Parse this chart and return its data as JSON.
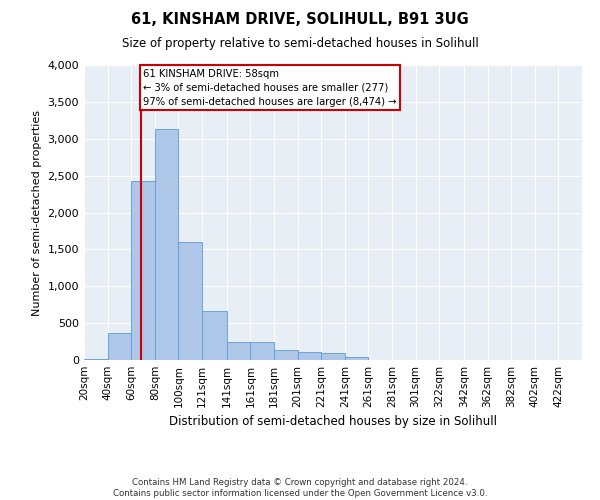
{
  "title": "61, KINSHAM DRIVE, SOLIHULL, B91 3UG",
  "subtitle": "Size of property relative to semi-detached houses in Solihull",
  "xlabel": "Distribution of semi-detached houses by size in Solihull",
  "ylabel": "Number of semi-detached properties",
  "footnote": "Contains HM Land Registry data © Crown copyright and database right 2024.\nContains public sector information licensed under the Open Government Licence v3.0.",
  "annotation_line1": "61 KINSHAM DRIVE: 58sqm",
  "annotation_line2": "← 3% of semi-detached houses are smaller (277)",
  "annotation_line3": "97% of semi-detached houses are larger (8,474) →",
  "property_size": 58,
  "bar_color": "#aec6e8",
  "bar_edge_color": "#5b9bd5",
  "marker_color": "#cc0000",
  "annotation_box_color": "#cc0000",
  "background_color": "#e8eef5",
  "categories": [
    "20sqm",
    "40sqm",
    "60sqm",
    "80sqm",
    "100sqm",
    "121sqm",
    "141sqm",
    "161sqm",
    "181sqm",
    "201sqm",
    "221sqm",
    "241sqm",
    "261sqm",
    "281sqm",
    "301sqm",
    "322sqm",
    "342sqm",
    "362sqm",
    "382sqm",
    "402sqm",
    "422sqm"
  ],
  "bin_left": [
    10,
    30,
    50,
    70,
    90,
    110,
    131,
    151,
    171,
    191,
    211,
    231,
    251,
    271,
    291,
    311,
    332,
    352,
    372,
    392,
    412
  ],
  "bin_right": [
    30,
    50,
    70,
    90,
    110,
    131,
    151,
    171,
    191,
    211,
    231,
    251,
    271,
    291,
    311,
    332,
    352,
    372,
    392,
    412,
    432
  ],
  "values": [
    8,
    370,
    2430,
    3130,
    1600,
    670,
    250,
    245,
    130,
    110,
    95,
    40,
    0,
    0,
    0,
    0,
    0,
    0,
    0,
    0,
    0
  ],
  "ylim": [
    0,
    4000
  ],
  "yticks": [
    0,
    500,
    1000,
    1500,
    2000,
    2500,
    3000,
    3500,
    4000
  ]
}
